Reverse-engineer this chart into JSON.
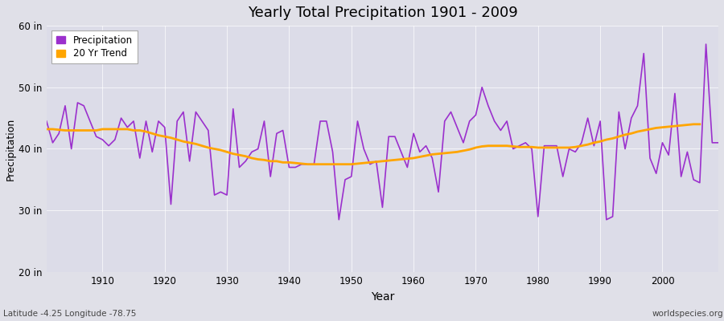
{
  "title": "Yearly Total Precipitation 1901 - 2009",
  "xlabel": "Year",
  "ylabel": "Precipitation",
  "subtitle_left": "Latitude -4.25 Longitude -78.75",
  "subtitle_right": "worldspecies.org",
  "ylim": [
    20,
    60
  ],
  "yticks": [
    20,
    30,
    40,
    50,
    60
  ],
  "ytick_labels": [
    "20 in",
    "30 in",
    "40 in",
    "50 in",
    "60 in"
  ],
  "xlim": [
    1901,
    2009
  ],
  "xticks": [
    1910,
    1920,
    1930,
    1940,
    1950,
    1960,
    1970,
    1980,
    1990,
    2000
  ],
  "precip_color": "#9B30CD",
  "trend_color": "#FFA500",
  "outer_bg": "#E0E0E8",
  "plot_bg": "#DCDCE8",
  "grid_color": "#FFFFFF",
  "legend_entries": [
    "Precipitation",
    "20 Yr Trend"
  ],
  "years": [
    1901,
    1902,
    1903,
    1904,
    1905,
    1906,
    1907,
    1908,
    1909,
    1910,
    1911,
    1912,
    1913,
    1914,
    1915,
    1916,
    1917,
    1918,
    1919,
    1920,
    1921,
    1922,
    1923,
    1924,
    1925,
    1926,
    1927,
    1928,
    1929,
    1930,
    1931,
    1932,
    1933,
    1934,
    1935,
    1936,
    1937,
    1938,
    1939,
    1940,
    1941,
    1942,
    1943,
    1944,
    1945,
    1946,
    1947,
    1948,
    1949,
    1950,
    1951,
    1952,
    1953,
    1954,
    1955,
    1956,
    1957,
    1958,
    1959,
    1960,
    1961,
    1962,
    1963,
    1964,
    1965,
    1966,
    1967,
    1968,
    1969,
    1970,
    1971,
    1972,
    1973,
    1974,
    1975,
    1976,
    1977,
    1978,
    1979,
    1980,
    1981,
    1982,
    1983,
    1984,
    1985,
    1986,
    1987,
    1988,
    1989,
    1990,
    1991,
    1992,
    1993,
    1994,
    1995,
    1996,
    1997,
    1998,
    1999,
    2000,
    2001,
    2002,
    2003,
    2004,
    2005,
    2006,
    2007,
    2008,
    2009
  ],
  "precip": [
    44.5,
    41.0,
    42.5,
    47.0,
    40.0,
    47.5,
    47.0,
    44.5,
    42.0,
    41.5,
    40.5,
    41.5,
    45.0,
    43.5,
    44.5,
    38.5,
    44.5,
    39.5,
    44.5,
    43.5,
    31.0,
    44.5,
    46.0,
    38.0,
    46.0,
    44.5,
    43.0,
    32.5,
    33.0,
    32.5,
    46.5,
    37.0,
    38.0,
    39.5,
    40.0,
    44.5,
    35.5,
    42.5,
    43.0,
    37.0,
    37.0,
    37.5,
    37.5,
    37.5,
    44.5,
    44.5,
    39.5,
    28.5,
    35.0,
    35.5,
    44.5,
    40.0,
    37.5,
    38.0,
    30.5,
    42.0,
    42.0,
    39.5,
    37.0,
    42.5,
    39.5,
    40.5,
    38.5,
    33.0,
    44.5,
    46.0,
    43.5,
    41.0,
    44.5,
    45.5,
    50.0,
    47.0,
    44.5,
    43.0,
    44.5,
    40.0,
    40.5,
    41.0,
    40.0,
    29.0,
    40.5,
    40.5,
    40.5,
    35.5,
    40.0,
    39.5,
    41.0,
    45.0,
    40.5,
    44.5,
    28.5,
    29.0,
    46.0,
    40.0,
    45.0,
    47.0,
    55.5,
    38.5,
    36.0,
    41.0,
    39.0,
    49.0,
    35.5,
    39.5,
    35.0,
    34.5,
    57.0,
    41.0,
    41.0
  ],
  "trend": [
    43.2,
    43.2,
    43.1,
    43.0,
    43.0,
    43.0,
    43.0,
    43.0,
    43.0,
    43.2,
    43.2,
    43.2,
    43.2,
    43.2,
    43.0,
    43.0,
    42.8,
    42.5,
    42.2,
    42.0,
    41.8,
    41.5,
    41.2,
    41.0,
    40.8,
    40.5,
    40.2,
    40.0,
    39.8,
    39.5,
    39.2,
    39.0,
    38.8,
    38.5,
    38.3,
    38.2,
    38.0,
    38.0,
    37.8,
    37.8,
    37.7,
    37.6,
    37.5,
    37.5,
    37.5,
    37.5,
    37.5,
    37.5,
    37.5,
    37.5,
    37.6,
    37.7,
    37.8,
    37.9,
    38.0,
    38.1,
    38.2,
    38.3,
    38.4,
    38.5,
    38.7,
    38.9,
    39.1,
    39.2,
    39.3,
    39.4,
    39.5,
    39.7,
    39.9,
    40.2,
    40.4,
    40.5,
    40.5,
    40.5,
    40.5,
    40.4,
    40.3,
    40.3,
    40.3,
    40.2,
    40.2,
    40.2,
    40.2,
    40.2,
    40.2,
    40.3,
    40.5,
    40.7,
    41.0,
    41.2,
    41.5,
    41.7,
    42.0,
    42.3,
    42.5,
    42.8,
    43.0,
    43.2,
    43.4,
    43.5,
    43.6,
    43.7,
    43.8,
    43.9,
    44.0,
    44.0,
    null,
    null,
    null
  ]
}
